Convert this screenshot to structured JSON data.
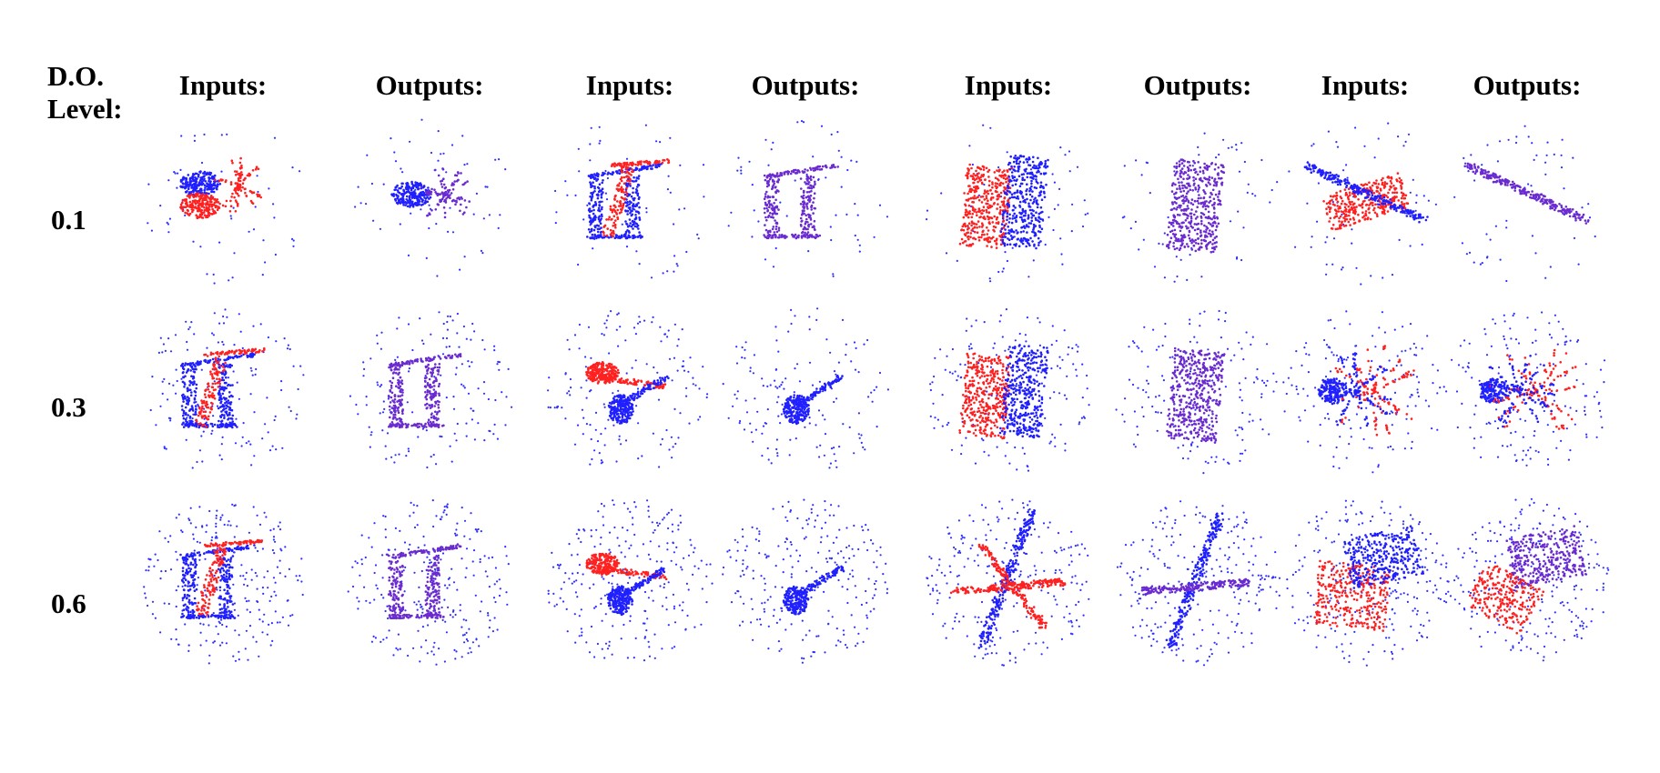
{
  "figure": {
    "header_label_line1": "D.O.",
    "header_label_line2": "Level:",
    "column_headers": [
      "Inputs:",
      "Outputs:",
      "Inputs:",
      "Outputs:",
      "Inputs:",
      "Outputs:",
      "Inputs:",
      "Outputs:"
    ],
    "row_labels": [
      "0.1",
      "0.3",
      "0.6"
    ],
    "colors": {
      "source_points": "#ff2020",
      "target_points": "#2020ff",
      "noise_points": "#3030ff"
    },
    "cells": [
      [
        {
          "shape": "lamp",
          "role": "input"
        },
        {
          "shape": "lamp",
          "role": "output"
        },
        {
          "shape": "chair",
          "role": "input"
        },
        {
          "shape": "chair",
          "role": "output"
        },
        {
          "shape": "sofa",
          "role": "input"
        },
        {
          "shape": "sofa",
          "role": "output"
        },
        {
          "shape": "plank",
          "role": "input"
        },
        {
          "shape": "plank",
          "role": "output"
        }
      ],
      [
        {
          "shape": "chair",
          "role": "input"
        },
        {
          "shape": "chair",
          "role": "output"
        },
        {
          "shape": "guitar",
          "role": "input"
        },
        {
          "shape": "guitar",
          "role": "output"
        },
        {
          "shape": "sofa",
          "role": "input"
        },
        {
          "shape": "sofa",
          "role": "output"
        },
        {
          "shape": "plant",
          "role": "input"
        },
        {
          "shape": "plant",
          "role": "output"
        }
      ],
      [
        {
          "shape": "chair",
          "role": "input"
        },
        {
          "shape": "chair",
          "role": "output"
        },
        {
          "shape": "guitar",
          "role": "input"
        },
        {
          "shape": "guitar",
          "role": "output"
        },
        {
          "shape": "airplane",
          "role": "input"
        },
        {
          "shape": "airplane",
          "role": "output"
        },
        {
          "shape": "table",
          "role": "input"
        },
        {
          "shape": "table",
          "role": "output"
        }
      ]
    ]
  }
}
